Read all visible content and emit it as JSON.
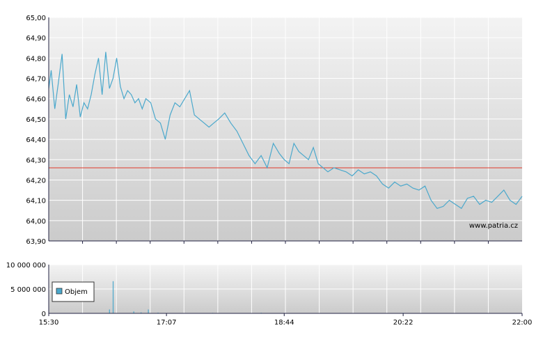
{
  "watermark": "www.patria.cz",
  "colors": {
    "price_line": "#4aa8cc",
    "reference_line": "#e03a2a",
    "volume_bar": "#4aa8cc",
    "plot_bg_top": "#f3f3f3",
    "plot_bg_bottom": "#cbcbcb",
    "grid": "#ffffff",
    "axis": "#202040"
  },
  "chart_data": [
    {
      "type": "line",
      "xlabel": "",
      "ylabel": "",
      "ylim": [
        63.9,
        65.0
      ],
      "yticks": [
        "63,90",
        "64,00",
        "64,10",
        "64,20",
        "64,30",
        "64,40",
        "64,50",
        "64,60",
        "64,70",
        "64,80",
        "64,90",
        "65,00"
      ],
      "xlim": [
        "15:30",
        "22:00"
      ],
      "reference_line": 64.26,
      "grid": true,
      "series": [
        {
          "x": [
            "15:30",
            "15:32",
            "15:35",
            "15:38",
            "15:41",
            "15:44",
            "15:47",
            "15:50",
            "15:53",
            "15:56",
            "15:59",
            "16:02",
            "16:05",
            "16:08",
            "16:11",
            "16:14",
            "16:17",
            "16:20",
            "16:23",
            "16:26",
            "16:29",
            "16:32",
            "16:35",
            "16:38",
            "16:41",
            "16:44",
            "16:47",
            "16:50",
            "16:54",
            "16:58",
            "17:02",
            "17:06",
            "17:10",
            "17:14",
            "17:18",
            "17:22",
            "17:26",
            "17:30",
            "17:34",
            "17:38",
            "17:42",
            "17:46",
            "17:50",
            "17:55",
            "18:00",
            "18:05",
            "18:10",
            "18:15",
            "18:20",
            "18:25",
            "18:30",
            "18:35",
            "18:40",
            "18:44",
            "18:48",
            "18:52",
            "18:56",
            "19:00",
            "19:04",
            "19:08",
            "19:12",
            "19:16",
            "19:20",
            "19:25",
            "19:30",
            "19:35",
            "19:40",
            "19:45",
            "19:50",
            "19:55",
            "20:00",
            "20:05",
            "20:10",
            "20:15",
            "20:20",
            "20:25",
            "20:30",
            "20:35",
            "20:40",
            "20:45",
            "20:50",
            "20:55",
            "21:00",
            "21:05",
            "21:10",
            "21:15",
            "21:20",
            "21:25",
            "21:30",
            "21:35",
            "21:40",
            "21:45",
            "21:50",
            "21:55",
            "22:00"
          ],
          "y": [
            64.65,
            64.74,
            64.55,
            64.68,
            64.82,
            64.5,
            64.62,
            64.56,
            64.67,
            64.51,
            64.58,
            64.55,
            64.62,
            64.72,
            64.8,
            64.62,
            64.83,
            64.65,
            64.7,
            64.8,
            64.66,
            64.6,
            64.64,
            64.62,
            64.58,
            64.6,
            64.55,
            64.6,
            64.58,
            64.5,
            64.48,
            64.4,
            64.52,
            64.58,
            64.56,
            64.6,
            64.64,
            64.52,
            64.5,
            64.48,
            64.46,
            64.48,
            64.5,
            64.53,
            64.48,
            64.44,
            64.38,
            64.32,
            64.28,
            64.32,
            64.26,
            64.38,
            64.33,
            64.3,
            64.28,
            64.38,
            64.34,
            64.32,
            64.3,
            64.36,
            64.28,
            64.26,
            64.24,
            64.26,
            64.25,
            64.24,
            64.22,
            64.25,
            64.23,
            64.24,
            64.22,
            64.18,
            64.16,
            64.19,
            64.17,
            64.18,
            64.16,
            64.15,
            64.17,
            64.1,
            64.06,
            64.07,
            64.1,
            64.08,
            64.06,
            64.11,
            64.12,
            64.08,
            64.1,
            64.09,
            64.12,
            64.15,
            64.1,
            64.08,
            64.12
          ]
        }
      ]
    },
    {
      "type": "bar",
      "ylim": [
        0,
        10000000
      ],
      "yticks": [
        "0",
        "5 000 000",
        "10 000 000"
      ],
      "xticks": [
        "15:30",
        "17:07",
        "18:44",
        "20:22",
        "22:00"
      ],
      "legend": "Objem",
      "legend_position": "top-left",
      "series": [
        {
          "name": "Objem",
          "x": [
            "15:30",
            "16:20",
            "16:23",
            "16:40",
            "16:46",
            "16:52",
            "17:00",
            "17:45",
            "18:25",
            "19:30",
            "20:22",
            "21:00",
            "21:40"
          ],
          "values": [
            0,
            800000,
            6600000,
            400000,
            200000,
            800000,
            150000,
            100000,
            120000,
            80000,
            90000,
            60000,
            70000
          ]
        }
      ]
    }
  ]
}
